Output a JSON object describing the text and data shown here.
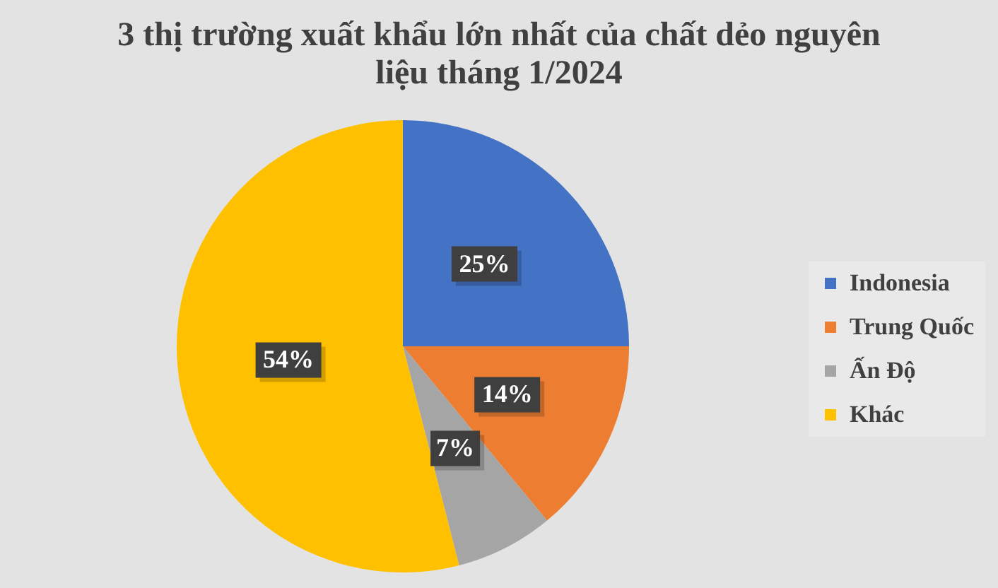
{
  "chart_data": {
    "type": "pie",
    "title": "3 thị trường xuất khẩu lớn nhất của chất dẻo nguyên liệu tháng 1/2024",
    "categories": [
      "Indonesia",
      "Trung Quốc",
      "Ấn Độ",
      "Khác"
    ],
    "values": [
      25,
      14,
      7,
      54
    ],
    "colors": [
      "#4472c4",
      "#ed7d31",
      "#a5a5a5",
      "#ffc000"
    ],
    "value_labels": [
      "25%",
      "14%",
      "7%",
      "54%"
    ],
    "legend": "right"
  }
}
